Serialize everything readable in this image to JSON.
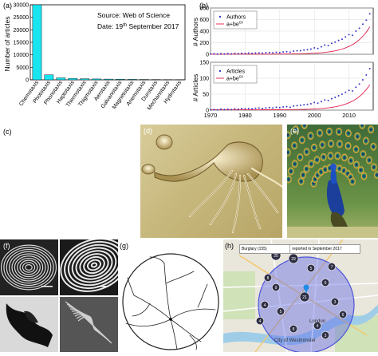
{
  "panels": {
    "a": "(a)",
    "b": "(b)",
    "c": "(c)",
    "d": "(d)",
    "e": "(e)",
    "f": "(f)",
    "g": "(g)",
    "h": "(h)"
  },
  "map": {
    "filter_left": "Burglary (155)",
    "filter_right": "reported in September 2017",
    "place_labels": [
      "London",
      "City of Westminster"
    ],
    "cluster_counts": [
      "25",
      "29",
      "8",
      "5",
      "21",
      "6",
      "4",
      "5",
      "3",
      "6",
      "8",
      "4",
      "9",
      "7",
      "4",
      "3"
    ]
  },
  "colors": {
    "bar_fill": "#18e5ef",
    "author_points": "#3838c8",
    "fit_line": "#e0204a",
    "map_circle": "#5b64e8",
    "cluster": "#2f2f45"
  },
  "chart_data": [
    {
      "type": "bar",
      "categories": [
        "Chemotaxis",
        "Phototaxis",
        "Phonotaxis",
        "Haptotaxis",
        "Thermotaxis",
        "Thigmotaxis",
        "Aerotaxis",
        "Galvanotaxis",
        "Magnetotaxis",
        "Anemotaxis",
        "Durotaxis",
        "Mechanotaxis",
        "Hydrotaxis"
      ],
      "values": [
        30300,
        2000,
        800,
        600,
        450,
        350,
        300,
        250,
        200,
        150,
        120,
        100,
        80
      ],
      "ylabel": "Number of articles",
      "ylim": [
        0,
        30000
      ],
      "yticks": [
        "0",
        "5000",
        "10000",
        "15000",
        "20000",
        "25000",
        "30000"
      ],
      "annotation_source": "Source: Web of Science",
      "annotation_date_prefix": "Date: 19",
      "annotation_date_sup": "th",
      "annotation_date_suffix": " September 2017",
      "grid": false
    },
    {
      "type": "scatter",
      "ylabel": "# Authors",
      "ylim": [
        0,
        800
      ],
      "yticks": [
        "0",
        "200",
        "400",
        "600",
        "800"
      ],
      "xlim": [
        1970,
        2017
      ],
      "legend": {
        "points": "Authors",
        "fit_prefix": "a+be",
        "fit_sup": "cx"
      },
      "legend_position": "top-left",
      "x": [
        1970,
        1971,
        1972,
        1973,
        1974,
        1975,
        1976,
        1977,
        1978,
        1979,
        1980,
        1981,
        1982,
        1983,
        1984,
        1985,
        1986,
        1987,
        1988,
        1989,
        1990,
        1991,
        1992,
        1993,
        1994,
        1995,
        1996,
        1997,
        1998,
        1999,
        2000,
        2001,
        2002,
        2003,
        2004,
        2005,
        2006,
        2007,
        2008,
        2009,
        2010,
        2011,
        2012,
        2013,
        2014,
        2015,
        2016
      ],
      "values": [
        5,
        8,
        4,
        10,
        6,
        12,
        8,
        15,
        10,
        18,
        14,
        20,
        16,
        22,
        25,
        20,
        28,
        30,
        26,
        35,
        30,
        40,
        45,
        38,
        55,
        60,
        62,
        75,
        80,
        90,
        110,
        100,
        130,
        160,
        150,
        190,
        210,
        240,
        260,
        300,
        340,
        330,
        400,
        450,
        520,
        590,
        700
      ],
      "fit": {
        "a": 2,
        "b": 0.03,
        "c": 0.21
      },
      "grid": true
    },
    {
      "type": "scatter",
      "ylabel": "# Articles",
      "ylim": [
        0,
        150
      ],
      "yticks": [
        "0",
        "50",
        "100",
        "150"
      ],
      "xlim": [
        1970,
        2017
      ],
      "xticks": [
        "1970",
        "1980",
        "1990",
        "2000",
        "2010"
      ],
      "legend": {
        "points": "Articles",
        "fit_prefix": "a+be",
        "fit_sup": "cx"
      },
      "legend_position": "top-left",
      "x": [
        1970,
        1971,
        1972,
        1973,
        1974,
        1975,
        1976,
        1977,
        1978,
        1979,
        1980,
        1981,
        1982,
        1983,
        1984,
        1985,
        1986,
        1987,
        1988,
        1989,
        1990,
        1991,
        1992,
        1993,
        1994,
        1995,
        1996,
        1997,
        1998,
        1999,
        2000,
        2001,
        2002,
        2003,
        2004,
        2005,
        2006,
        2007,
        2008,
        2009,
        2010,
        2011,
        2012,
        2013,
        2014,
        2015,
        2016
      ],
      "values": [
        1,
        2,
        1,
        3,
        2,
        3,
        2,
        4,
        3,
        5,
        4,
        5,
        4,
        6,
        7,
        5,
        7,
        8,
        7,
        9,
        8,
        10,
        11,
        9,
        13,
        14,
        15,
        17,
        18,
        20,
        24,
        22,
        27,
        32,
        30,
        36,
        40,
        45,
        50,
        56,
        62,
        60,
        72,
        82,
        95,
        110,
        130
      ],
      "fit": {
        "a": 1,
        "b": 0.005,
        "c": 0.21
      },
      "grid": true
    }
  ]
}
